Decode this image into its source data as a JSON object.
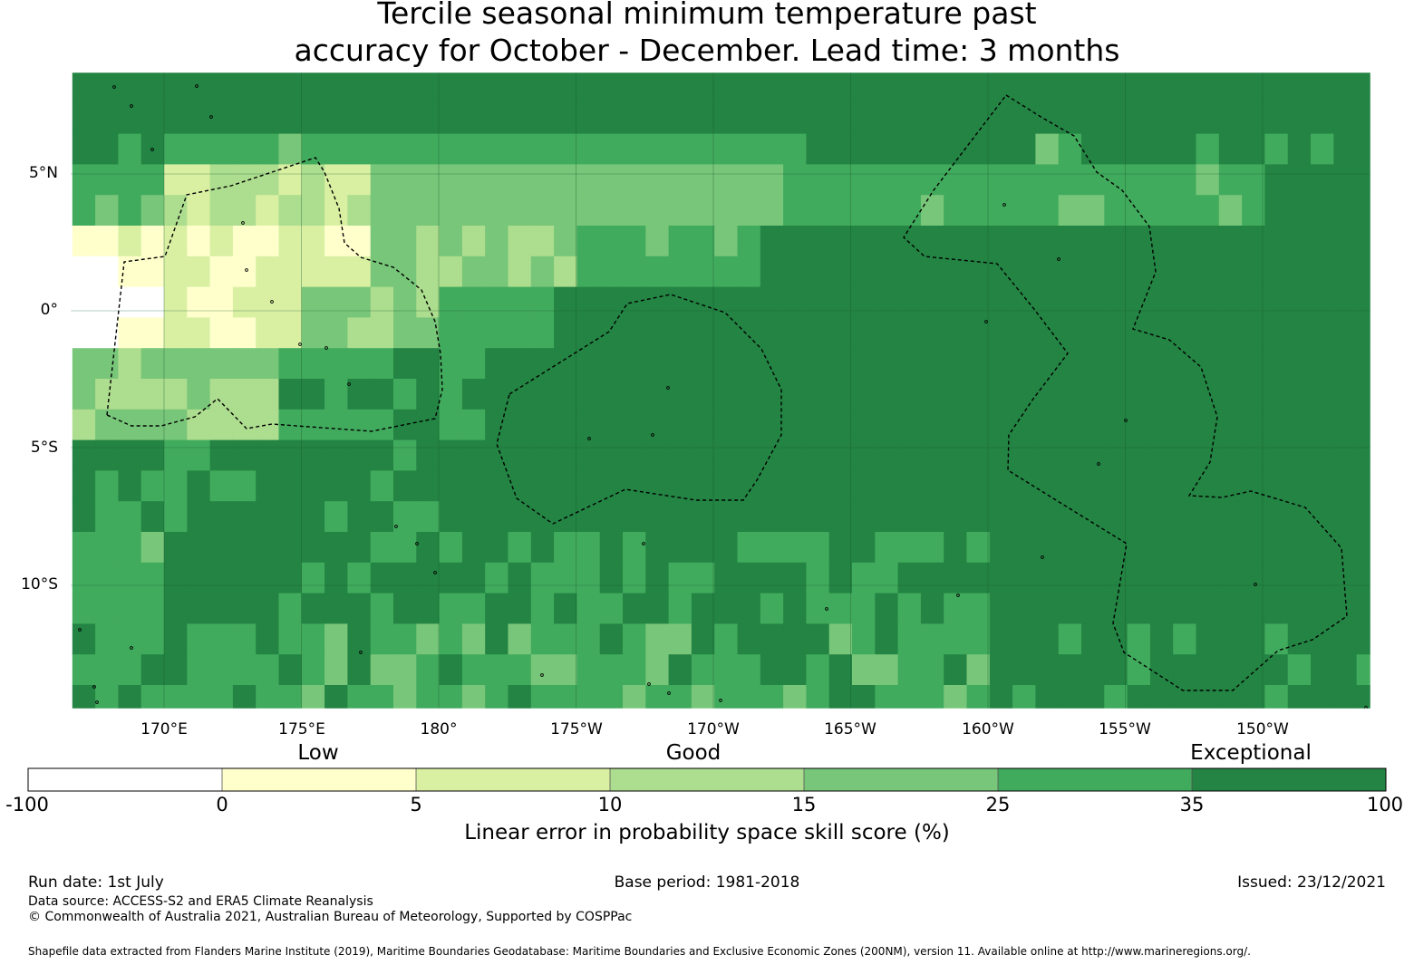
{
  "title": {
    "line1": "Tercile seasonal minimum temperature past",
    "line2": "accuracy for October - December. Lead time: 3 months"
  },
  "map": {
    "lat_labels": [
      "5°N",
      "0°",
      "5°S",
      "10°S"
    ],
    "lon_labels": [
      "170°E",
      "175°E",
      "180°",
      "175°W",
      "170°W",
      "165°W",
      "160°W",
      "155°W",
      "150°W"
    ]
  },
  "colorbar": {
    "category_labels": [
      "Low",
      "Good",
      "Exceptional"
    ],
    "ticks": [
      "-100",
      "0",
      "5",
      "10",
      "15",
      "25",
      "35",
      "100"
    ],
    "colors": [
      "#ffffff",
      "#ffffcc",
      "#d9f0a3",
      "#addd8e",
      "#78c679",
      "#41ab5d",
      "#238443"
    ],
    "title": "Linear error in probability space skill score (%)"
  },
  "footer": {
    "run_date": "Run date: 1st July",
    "base_period": "Base period: 1981-2018",
    "issued": "Issued: 23/12/2021",
    "data_source": "Data source: ACCESS-S2 and ERA5 Climate Reanalysis",
    "copyright": "© Commonwealth of Australia 2021, Australian Bureau of Meteorology, Supported by COSPPac",
    "shapefile": "Shapefile data extracted from Flanders Marine Institute (2019), Maritime Boundaries Geodatabase: Maritime Boundaries and Exclusive Economic Zones (200NM), version 11. Available online at http://www.marineregions.org/."
  }
}
